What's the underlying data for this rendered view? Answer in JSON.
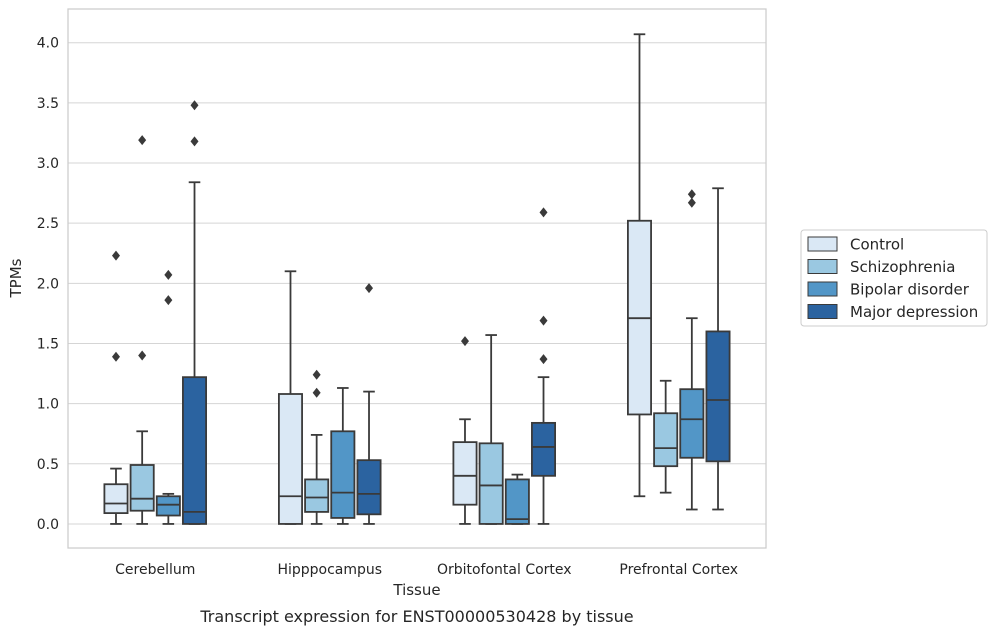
{
  "caption": "Transcript expression for ENST00000530428 by tissue",
  "chart_data": {
    "type": "box",
    "xlabel": "Tissue",
    "ylabel": "TPMs",
    "ylim": [
      -0.2,
      4.28
    ],
    "yticks": [
      "0.0",
      "0.5",
      "1.0",
      "1.5",
      "2.0",
      "2.5",
      "3.0",
      "3.5",
      "4.0"
    ],
    "grid": true,
    "legend_position": "right",
    "categories": [
      "Cerebellum",
      "Hipppocampus",
      "Orbitofontal Cortex",
      "Prefrontal Cortex"
    ],
    "series": [
      {
        "name": "Control",
        "color": "#dae8f5",
        "boxes": [
          {
            "whisker_low": 0.0,
            "q1": 0.09,
            "median": 0.17,
            "q3": 0.33,
            "whisker_high": 0.46,
            "outliers": [
              1.39,
              2.23
            ]
          },
          {
            "whisker_low": 0.0,
            "q1": 0.0,
            "median": 0.23,
            "q3": 1.08,
            "whisker_high": 2.1,
            "outliers": []
          },
          {
            "whisker_low": 0.0,
            "q1": 0.16,
            "median": 0.4,
            "q3": 0.68,
            "whisker_high": 0.87,
            "outliers": [
              1.52
            ]
          },
          {
            "whisker_low": 0.23,
            "q1": 0.91,
            "median": 1.71,
            "q3": 2.52,
            "whisker_high": 4.07,
            "outliers": []
          }
        ]
      },
      {
        "name": "Schizophrenia",
        "color": "#9ac8e1",
        "boxes": [
          {
            "whisker_low": 0.0,
            "q1": 0.11,
            "median": 0.21,
            "q3": 0.49,
            "whisker_high": 0.77,
            "outliers": [
              1.4,
              3.19
            ]
          },
          {
            "whisker_low": 0.0,
            "q1": 0.1,
            "median": 0.22,
            "q3": 0.37,
            "whisker_high": 0.74,
            "outliers": [
              1.09,
              1.24
            ]
          },
          {
            "whisker_low": 0.0,
            "q1": 0.0,
            "median": 0.32,
            "q3": 0.67,
            "whisker_high": 1.57,
            "outliers": []
          },
          {
            "whisker_low": 0.26,
            "q1": 0.48,
            "median": 0.63,
            "q3": 0.92,
            "whisker_high": 1.19,
            "outliers": []
          }
        ]
      },
      {
        "name": "Bipolar disorder",
        "color": "#5296c7",
        "boxes": [
          {
            "whisker_low": 0.0,
            "q1": 0.07,
            "median": 0.16,
            "q3": 0.23,
            "whisker_high": 0.25,
            "outliers": [
              1.86,
              2.07
            ]
          },
          {
            "whisker_low": 0.0,
            "q1": 0.05,
            "median": 0.26,
            "q3": 0.77,
            "whisker_high": 1.13,
            "outliers": []
          },
          {
            "whisker_low": 0.0,
            "q1": 0.0,
            "median": 0.04,
            "q3": 0.37,
            "whisker_high": 0.41,
            "outliers": []
          },
          {
            "whisker_low": 0.12,
            "q1": 0.55,
            "median": 0.87,
            "q3": 1.12,
            "whisker_high": 1.71,
            "outliers": [
              2.67,
              2.74
            ]
          }
        ]
      },
      {
        "name": "Major depression",
        "color": "#2b63a0",
        "boxes": [
          {
            "whisker_low": 0.0,
            "q1": 0.0,
            "median": 0.1,
            "q3": 1.22,
            "whisker_high": 2.84,
            "outliers": [
              3.18,
              3.48
            ]
          },
          {
            "whisker_low": 0.0,
            "q1": 0.08,
            "median": 0.25,
            "q3": 0.53,
            "whisker_high": 1.1,
            "outliers": [
              1.96
            ]
          },
          {
            "whisker_low": 0.0,
            "q1": 0.4,
            "median": 0.64,
            "q3": 0.84,
            "whisker_high": 1.22,
            "outliers": [
              1.37,
              1.69,
              2.59
            ]
          },
          {
            "whisker_low": 0.12,
            "q1": 0.52,
            "median": 1.03,
            "q3": 1.6,
            "whisker_high": 2.79,
            "outliers": []
          }
        ]
      }
    ]
  }
}
